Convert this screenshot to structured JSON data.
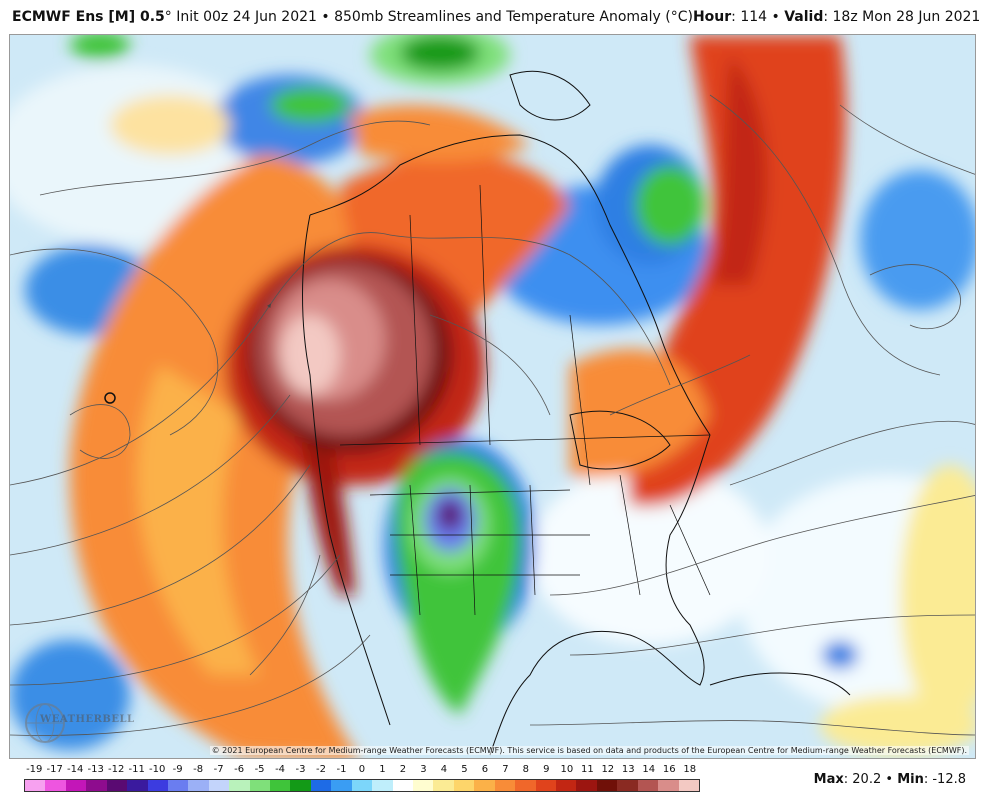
{
  "header": {
    "model": "ECMWF Ens [M] 0.5",
    "degree": "°",
    "init": "Init 00z 24 Jun 2021",
    "bullet": "•",
    "product": "850mb Streamlines and Temperature Anomaly (°C)",
    "hour_label": "Hour",
    "hour_value": ": 114",
    "valid_label": "Valid",
    "valid_value": ": 18z Mon 28 Jun 2021"
  },
  "map": {
    "copyright": "© 2021 European Centre for Medium-range Weather Forecasts (ECMWF). This service is based on data and products of the European Centre for Medium-range Weather Forecasts (ECMWF).",
    "logo_text": "WEATHERBELL"
  },
  "colorbar": {
    "labels": [
      "-19",
      "-17",
      "-14",
      "-13",
      "-12",
      "-11",
      "-10",
      "-9",
      "-8",
      "-7",
      "-6",
      "-5",
      "-4",
      "-3",
      "-2",
      "-1",
      "0",
      "1",
      "2",
      "3",
      "4",
      "5",
      "6",
      "7",
      "8",
      "9",
      "10",
      "11",
      "12",
      "13",
      "14",
      "16",
      "18"
    ],
    "colors": [
      "#f7a1f0",
      "#ee55e0",
      "#c316b8",
      "#8e0c8e",
      "#5a0a72",
      "#3a1a9e",
      "#3c3ce0",
      "#6a7df0",
      "#9bb0f6",
      "#c3d4fb",
      "#b9f2bb",
      "#7fe07a",
      "#3fc43a",
      "#139a17",
      "#1e6be6",
      "#3a9df3",
      "#7cd6fa",
      "#bfeefb",
      "#ffffff",
      "#fffdd0",
      "#fbeb94",
      "#fdd56a",
      "#fbb148",
      "#f88c38",
      "#f0672a",
      "#e0431c",
      "#c22613",
      "#9c1510",
      "#701008",
      "#8a2a22",
      "#b35552",
      "#d98d8a",
      "#f3c9c3"
    ],
    "max_label": "Max",
    "max_value": ": 20.2",
    "bullet": "•",
    "min_label": "Min",
    "min_value": ": -12.8"
  }
}
